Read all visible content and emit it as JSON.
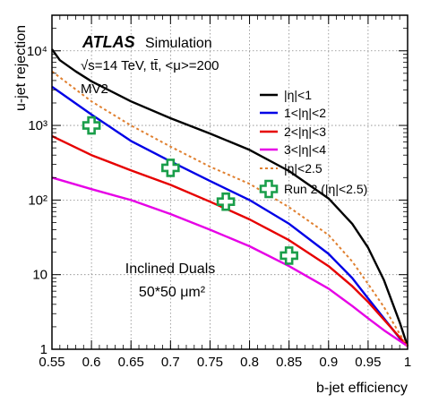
{
  "chart_data": {
    "type": "line",
    "title": "",
    "xlabel": "b-jet efficiency",
    "ylabel": "u-jet rejection",
    "xlim": [
      0.55,
      1.0
    ],
    "ylim": [
      1,
      30000
    ],
    "yscale": "log",
    "grid": true,
    "x_ticks": [
      0.55,
      0.6,
      0.65,
      0.7,
      0.75,
      0.8,
      0.85,
      0.9,
      0.95,
      1.0
    ],
    "x_tick_labels": [
      "0.55",
      "0.6",
      "0.65",
      "0.7",
      "0.75",
      "0.8",
      "0.85",
      "0.9",
      "0.95",
      "1"
    ],
    "y_ticks": [
      1,
      10,
      100,
      1000,
      10000
    ],
    "y_tick_labels": [
      "1",
      "10",
      "10²",
      "10³",
      "10⁴"
    ],
    "legend_position": "top-right",
    "series": [
      {
        "name": "|η|<1",
        "color": "#000000",
        "style": "solid",
        "x": [
          0.55,
          0.56,
          0.58,
          0.6,
          0.65,
          0.7,
          0.75,
          0.8,
          0.85,
          0.9,
          0.93,
          0.95,
          0.97,
          0.99,
          1.0
        ],
        "y": [
          10500,
          7500,
          5300,
          3900,
          2100,
          1250,
          780,
          470,
          245,
          105,
          48,
          23,
          8.5,
          2.3,
          1.1
        ]
      },
      {
        "name": "1<|η|<2",
        "color": "#0000e6",
        "style": "solid",
        "x": [
          0.55,
          0.6,
          0.65,
          0.7,
          0.75,
          0.8,
          0.85,
          0.9,
          0.93,
          0.95,
          0.97,
          0.99,
          1.0
        ],
        "y": [
          3300,
          1400,
          620,
          330,
          180,
          100,
          48,
          19,
          9,
          4.8,
          2.6,
          1.4,
          1.1
        ]
      },
      {
        "name": "2<|η|<3",
        "color": "#e60000",
        "style": "solid",
        "x": [
          0.55,
          0.6,
          0.65,
          0.7,
          0.75,
          0.8,
          0.85,
          0.9,
          0.93,
          0.95,
          0.97,
          1.0
        ],
        "y": [
          720,
          400,
          250,
          160,
          95,
          55,
          29,
          13,
          7,
          4.3,
          2.5,
          1.1
        ]
      },
      {
        "name": "3<|η|<4",
        "color": "#e600e6",
        "style": "solid",
        "x": [
          0.55,
          0.6,
          0.65,
          0.7,
          0.75,
          0.8,
          0.85,
          0.9,
          0.93,
          0.95,
          0.97,
          1.0
        ],
        "y": [
          200,
          140,
          100,
          65,
          40,
          24,
          13,
          6.5,
          3.8,
          2.6,
          1.8,
          1.1
        ]
      },
      {
        "name": "|η|<2.5",
        "color": "#e08030",
        "style": "dotted",
        "x": [
          0.55,
          0.6,
          0.65,
          0.7,
          0.75,
          0.8,
          0.85,
          0.9,
          0.93,
          0.95,
          0.97,
          0.99,
          1.0
        ],
        "y": [
          5300,
          2100,
          1000,
          520,
          280,
          165,
          80,
          34,
          15,
          7.5,
          3.7,
          1.6,
          1.1
        ]
      }
    ],
    "markers": {
      "name": "Run 2 (|η|<2.5)",
      "color": "#1a9e4a",
      "points": [
        {
          "x": 0.6,
          "y": 1000
        },
        {
          "x": 0.7,
          "y": 270
        },
        {
          "x": 0.77,
          "y": 95
        },
        {
          "x": 0.85,
          "y": 18
        }
      ]
    },
    "annotations": {
      "atlas": "ATLAS",
      "simulation": "Simulation",
      "energy": "√s=14 TeV,  tt̄, <μ>=200",
      "algorithm": "MV2",
      "layout_line1": "Inclined Duals",
      "layout_line2": "50*50 μm²"
    }
  }
}
